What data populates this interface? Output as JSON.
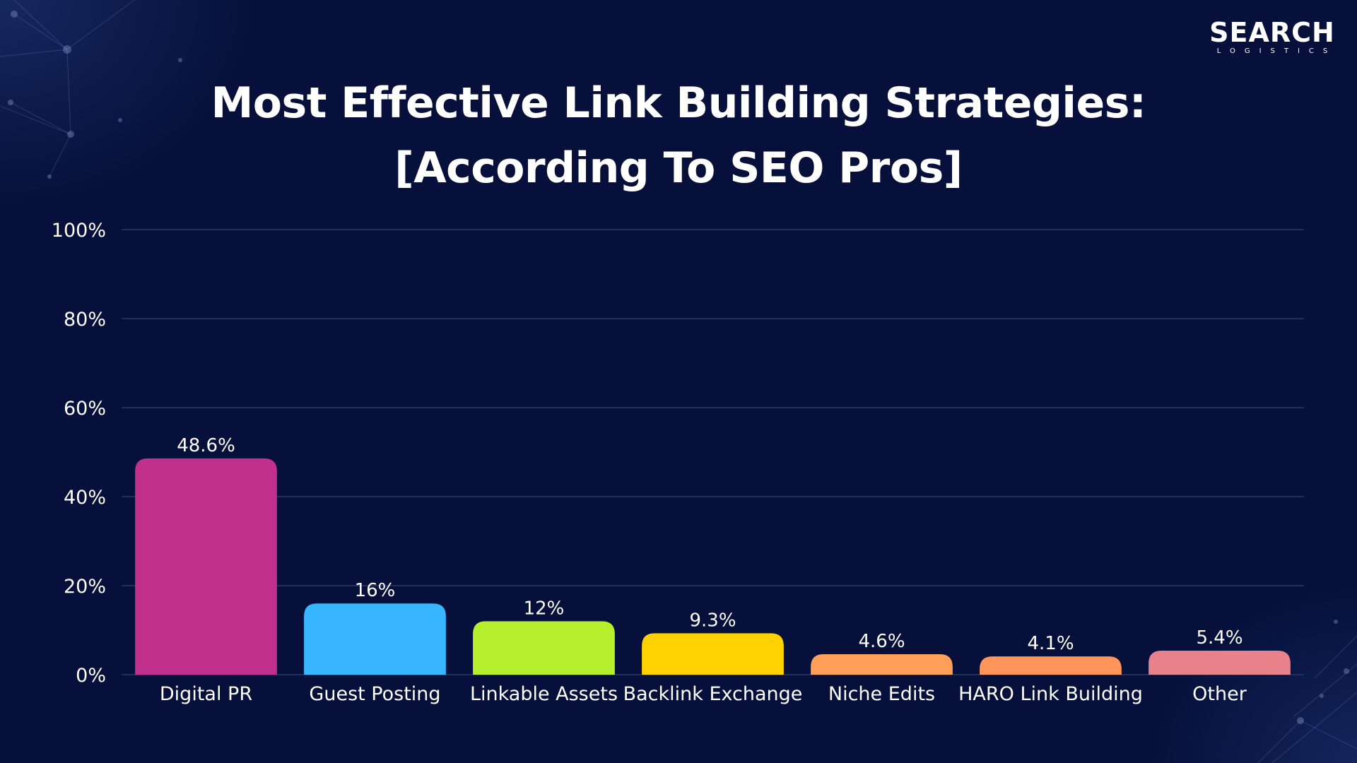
{
  "logo": {
    "name": "SEARCH",
    "sub": "LOGISTICS"
  },
  "chart_data": {
    "type": "bar",
    "title_line1": "Most Effective Link Building Strategies:",
    "title_line2": "[According To SEO Pros]",
    "categories": [
      "Digital PR",
      "Guest Posting",
      "Linkable Assets",
      "Backlink Exchange",
      "Niche Edits",
      "HARO Link Building",
      "Other"
    ],
    "values": [
      48.6,
      16,
      12,
      9.3,
      4.6,
      4.1,
      5.4
    ],
    "value_labels": [
      "48.6%",
      "16%",
      "12%",
      "9.3%",
      "4.6%",
      "4.1%",
      "5.4%"
    ],
    "colors": [
      "#c1308a",
      "#38b6ff",
      "#b6f02d",
      "#ffd100",
      "#ff9f5a",
      "#ff955a",
      "#e8828a"
    ],
    "ylim": [
      0,
      100
    ],
    "yticks": [
      0,
      20,
      40,
      60,
      80,
      100
    ],
    "ytick_labels": [
      "0%",
      "20%",
      "40%",
      "60%",
      "80%",
      "100%"
    ],
    "grid": true,
    "gridline_color": "#2a3766"
  }
}
